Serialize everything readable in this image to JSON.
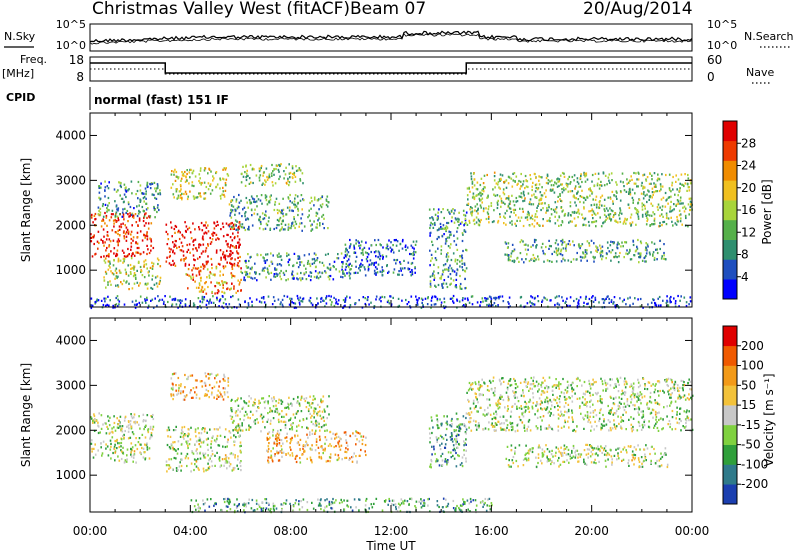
{
  "header": {
    "station": "Christmas Valley West (fitACF)",
    "beam": "Beam 07",
    "date": "20/Aug/2014"
  },
  "top_panels": {
    "nsky_label": "N.Sky",
    "nsky_ticks": [
      "10^5",
      "10^0"
    ],
    "nsearch_label": "N.Search",
    "nsearch_ticks": [
      "10^5",
      "10^0"
    ],
    "freq_label_1": "Freq.",
    "freq_label_2": "[MHz]",
    "freq_ticks": [
      "18",
      "8"
    ],
    "nave_label": "Nave",
    "nave_ticks": [
      "60",
      "0"
    ],
    "cpid_label": "CPID",
    "cpid_value": "normal (fast) 151 IF"
  },
  "chart_data": [
    {
      "type": "heatmap",
      "title": "",
      "xlabel": "Time UT",
      "ylabel": "Slant Range [km]",
      "x_ticks": [
        "00:00",
        "04:00",
        "08:00",
        "12:00",
        "16:00",
        "20:00",
        "00:00"
      ],
      "y_ticks": [
        "1000",
        "2000",
        "3000",
        "4000"
      ],
      "ylim": [
        180,
        4500
      ],
      "colorbar_label": "Power [dB]",
      "colorbar_ticks": [
        "4",
        "8",
        "12",
        "16",
        "20",
        "24",
        "28"
      ],
      "colorbar_colors": [
        "#0000ff",
        "#1f4fbf",
        "#2f8f6f",
        "#55b04a",
        "#a8d43a",
        "#f0c020",
        "#f08c00",
        "#ee3a00",
        "#e00000"
      ],
      "scatter_regions": [
        {
          "t0": 0.0,
          "t1": 2.5,
          "r0": 1300,
          "r1": 2300,
          "level": 0.9
        },
        {
          "t0": 0.3,
          "t1": 2.8,
          "r0": 2200,
          "r1": 3000,
          "level": 0.3
        },
        {
          "t0": 0.5,
          "t1": 2.8,
          "r0": 600,
          "r1": 1300,
          "level": 0.5
        },
        {
          "t0": 3.0,
          "t1": 6.0,
          "r0": 1100,
          "r1": 2100,
          "level": 0.95
        },
        {
          "t0": 3.2,
          "t1": 5.5,
          "r0": 2600,
          "r1": 3300,
          "level": 0.55
        },
        {
          "t0": 3.8,
          "t1": 6.0,
          "r0": 500,
          "r1": 1100,
          "level": 0.7
        },
        {
          "t0": 5.5,
          "t1": 9.5,
          "r0": 1900,
          "r1": 2700,
          "level": 0.35
        },
        {
          "t0": 6.0,
          "t1": 8.5,
          "r0": 2900,
          "r1": 3400,
          "level": 0.45
        },
        {
          "t0": 6.0,
          "t1": 10.5,
          "r0": 800,
          "r1": 1400,
          "level": 0.3
        },
        {
          "t0": 10.0,
          "t1": 13.0,
          "r0": 900,
          "r1": 1700,
          "level": 0.2
        },
        {
          "t0": 13.5,
          "t1": 15.0,
          "r0": 600,
          "r1": 2400,
          "level": 0.3
        },
        {
          "t0": 15.0,
          "t1": 24.0,
          "r0": 2000,
          "r1": 3200,
          "level": 0.45
        },
        {
          "t0": 16.5,
          "t1": 23.0,
          "r0": 1200,
          "r1": 1700,
          "level": 0.35
        },
        {
          "t0": 0.0,
          "t1": 24.0,
          "r0": 180,
          "r1": 450,
          "level": 0.15
        }
      ]
    },
    {
      "type": "heatmap",
      "title": "",
      "xlabel": "Time UT",
      "ylabel": "Slant Range [km]",
      "x_ticks": [
        "00:00",
        "04:00",
        "08:00",
        "12:00",
        "16:00",
        "20:00",
        "00:00"
      ],
      "y_ticks": [
        "1000",
        "2000",
        "3000",
        "4000"
      ],
      "ylim": [
        180,
        4500
      ],
      "colorbar_label": "Velocity [m s⁻¹]",
      "colorbar_ticks": [
        "200",
        "100",
        "50",
        "15",
        "-15",
        "-50",
        "-100",
        "-200"
      ],
      "colorbar_colors": [
        "#1b3fb0",
        "#2f7a8a",
        "#2f9f3a",
        "#7fd13f",
        "#c8c8c8",
        "#f3c23a",
        "#f39a18",
        "#f05a00",
        "#e00000"
      ],
      "scatter_regions": [
        {
          "t0": 0.0,
          "t1": 2.5,
          "r0": 1300,
          "r1": 2400,
          "level": 0.45
        },
        {
          "t0": 3.0,
          "t1": 6.0,
          "r0": 1100,
          "r1": 2100,
          "level": 0.45
        },
        {
          "t0": 3.2,
          "t1": 5.5,
          "r0": 2700,
          "r1": 3300,
          "level": 0.65
        },
        {
          "t0": 7.0,
          "t1": 11.0,
          "r0": 1300,
          "r1": 2000,
          "level": 0.65
        },
        {
          "t0": 5.5,
          "t1": 9.5,
          "r0": 2000,
          "r1": 2800,
          "level": 0.45
        },
        {
          "t0": 15.0,
          "t1": 24.0,
          "r0": 2000,
          "r1": 3200,
          "level": 0.45
        },
        {
          "t0": 16.5,
          "t1": 23.0,
          "r0": 1200,
          "r1": 1700,
          "level": 0.45
        },
        {
          "t0": 13.5,
          "t1": 15.0,
          "r0": 1200,
          "r1": 2400,
          "level": 0.3
        },
        {
          "t0": 4.0,
          "t1": 16.0,
          "r0": 200,
          "r1": 500,
          "level": 0.3
        }
      ]
    }
  ]
}
